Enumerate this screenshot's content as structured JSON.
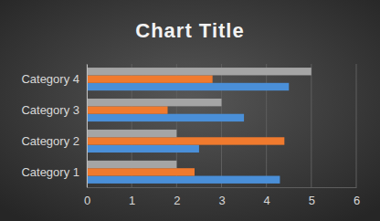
{
  "chart_data": {
    "type": "bar",
    "title": "Chart Title",
    "orientation": "horizontal",
    "grid": true,
    "categories": [
      "Category 1",
      "Category 2",
      "Category 3",
      "Category 4"
    ],
    "series": [
      {
        "color": "#4a8fd8",
        "values": [
          4.3,
          2.5,
          3.5,
          4.5
        ]
      },
      {
        "color": "#f07a2e",
        "values": [
          2.4,
          4.4,
          1.8,
          2.8
        ]
      },
      {
        "color": "#a5a5a5",
        "values": [
          2,
          2,
          3,
          5
        ]
      }
    ],
    "xlim": [
      0,
      6
    ],
    "xticks": [
      0,
      1,
      2,
      3,
      4,
      5,
      6
    ]
  }
}
